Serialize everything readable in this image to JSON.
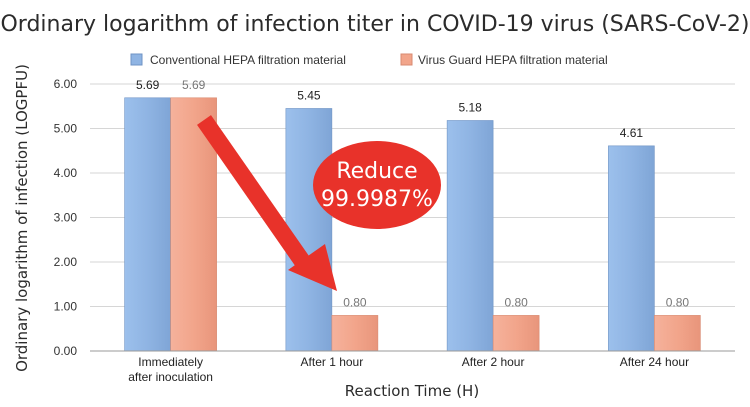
{
  "chart_data": {
    "type": "bar",
    "title": "Ordinary logarithm of infection titer in COVID-19 virus (SARS-CoV-2)",
    "xlabel": "Reaction Time (H)",
    "ylabel": "Ordinary logarithm of infection (LOGPFU)",
    "categories": [
      [
        "Immediately",
        "after inoculation"
      ],
      [
        "After 1 hour"
      ],
      [
        "After 2 hour"
      ],
      [
        "After 24 hour"
      ]
    ],
    "series": [
      {
        "name": "Conventional HEPA filtration material",
        "values": [
          5.69,
          5.45,
          5.18,
          4.61
        ],
        "labels": [
          "5.69",
          "5.45",
          "5.18",
          "4.61"
        ],
        "color": "#8fb4e3"
      },
      {
        "name": "Virus Guard HEPA filtration material",
        "values": [
          5.69,
          0.8,
          0.8,
          0.8
        ],
        "labels": [
          "5.69",
          "0.80",
          "0.80",
          "0.80"
        ],
        "color": "#f2a58b"
      }
    ],
    "ylim": [
      0,
      6
    ],
    "yticks": [
      "0.00",
      "1.00",
      "2.00",
      "3.00",
      "4.00",
      "5.00",
      "6.00"
    ],
    "grid": true,
    "legend": "top",
    "annotation": {
      "lines": [
        "Reduce",
        "99.9987%"
      ],
      "color": "#e8322a",
      "arrow_color": "#e8322a"
    }
  }
}
